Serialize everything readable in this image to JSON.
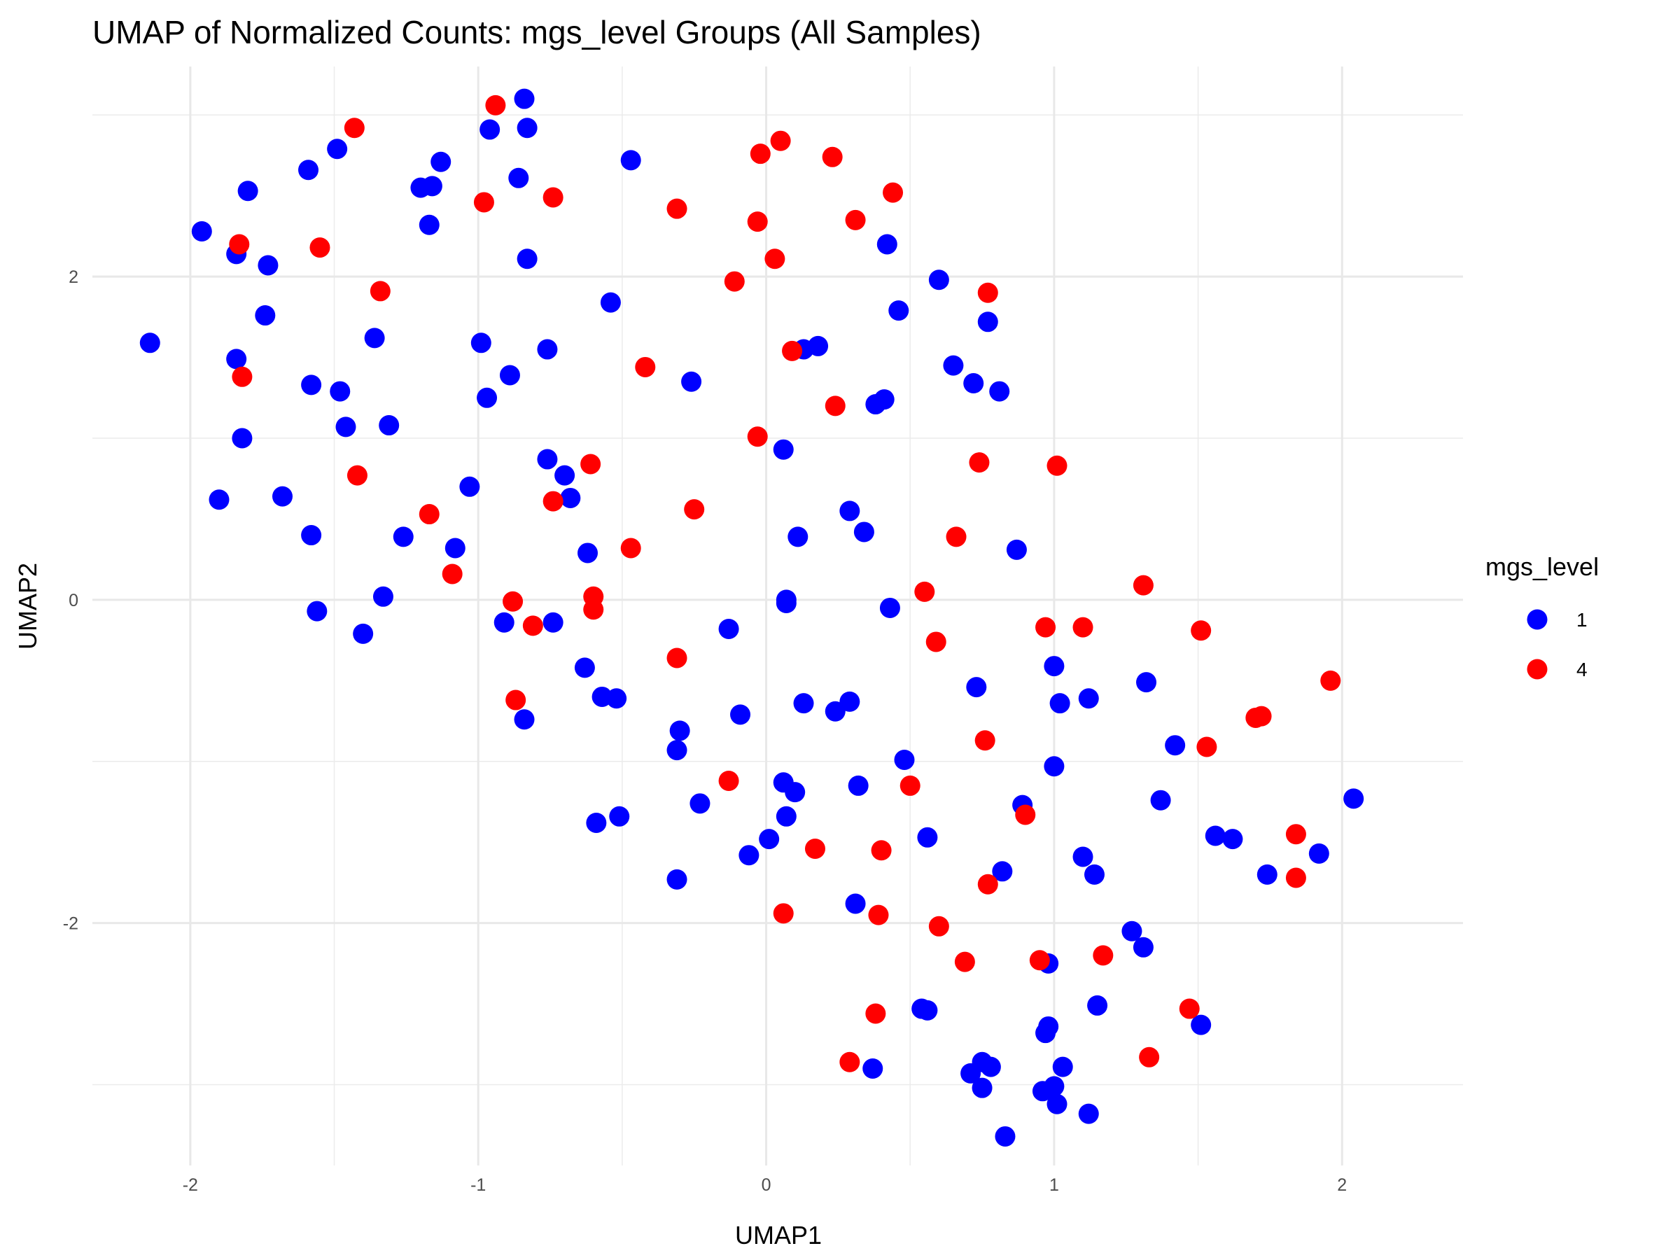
{
  "chart_data": {
    "type": "scatter",
    "title": "UMAP of Normalized Counts: mgs_level Groups (All Samples)",
    "xlabel": "UMAP1",
    "ylabel": "UMAP2",
    "xlim": [
      -2.34,
      2.42
    ],
    "ylim": [
      -3.5,
      3.3
    ],
    "xticks": [
      -2,
      -1,
      0,
      1,
      2
    ],
    "yticks": [
      -2,
      0,
      2
    ],
    "xtick_labels": [
      "-2",
      "-1",
      "0",
      "1",
      "2"
    ],
    "ytick_labels": [
      "-2",
      "0",
      "2"
    ],
    "grid": true,
    "legend_title": "mgs_level",
    "legend_position": "right",
    "series": [
      {
        "name": "1",
        "color": "#0000ff",
        "points": [
          [
            -2.14,
            1.59
          ],
          [
            -1.96,
            2.28
          ],
          [
            -1.9,
            0.62
          ],
          [
            -1.84,
            1.49
          ],
          [
            -1.84,
            2.14
          ],
          [
            -1.82,
            1.0
          ],
          [
            -1.8,
            2.53
          ],
          [
            -1.74,
            1.76
          ],
          [
            -1.73,
            2.07
          ],
          [
            -1.68,
            0.64
          ],
          [
            -1.59,
            2.66
          ],
          [
            -1.58,
            1.33
          ],
          [
            -1.58,
            0.4
          ],
          [
            -1.56,
            -0.07
          ],
          [
            -1.49,
            2.79
          ],
          [
            -1.48,
            1.29
          ],
          [
            -1.46,
            1.07
          ],
          [
            -1.4,
            -0.21
          ],
          [
            -1.36,
            1.62
          ],
          [
            -1.33,
            0.02
          ],
          [
            -1.31,
            1.08
          ],
          [
            -1.26,
            0.39
          ],
          [
            -1.2,
            2.55
          ],
          [
            -1.16,
            2.56
          ],
          [
            -1.17,
            2.32
          ],
          [
            -1.13,
            2.71
          ],
          [
            -1.08,
            0.32
          ],
          [
            -1.03,
            0.7
          ],
          [
            -0.99,
            1.59
          ],
          [
            -0.97,
            1.25
          ],
          [
            -0.96,
            2.91
          ],
          [
            -0.91,
            -0.14
          ],
          [
            -0.89,
            1.39
          ],
          [
            -0.86,
            2.61
          ],
          [
            -0.84,
            3.1
          ],
          [
            -0.83,
            2.92
          ],
          [
            -0.83,
            2.11
          ],
          [
            -0.84,
            -0.74
          ],
          [
            -0.74,
            -0.14
          ],
          [
            -0.76,
            1.55
          ],
          [
            -0.76,
            0.87
          ],
          [
            -0.7,
            0.77
          ],
          [
            -0.68,
            0.63
          ],
          [
            -0.62,
            0.29
          ],
          [
            -0.63,
            -0.42
          ],
          [
            -0.57,
            -0.6
          ],
          [
            -0.52,
            -0.61
          ],
          [
            -0.59,
            -1.38
          ],
          [
            -0.51,
            -1.34
          ],
          [
            -0.54,
            1.84
          ],
          [
            -0.47,
            2.72
          ],
          [
            -0.26,
            1.35
          ],
          [
            -0.3,
            -0.81
          ],
          [
            -0.31,
            -0.93
          ],
          [
            -0.31,
            -1.73
          ],
          [
            -0.23,
            -1.26
          ],
          [
            -0.13,
            -0.18
          ],
          [
            -0.09,
            -0.71
          ],
          [
            -0.06,
            -1.58
          ],
          [
            0.01,
            -1.48
          ],
          [
            0.06,
            -1.13
          ],
          [
            0.06,
            0.93
          ],
          [
            0.07,
            0.0
          ],
          [
            0.07,
            -0.02
          ],
          [
            0.1,
            -1.19
          ],
          [
            0.07,
            -1.34
          ],
          [
            0.11,
            0.39
          ],
          [
            0.13,
            1.55
          ],
          [
            0.13,
            -0.64
          ],
          [
            0.18,
            1.57
          ],
          [
            0.24,
            -0.69
          ],
          [
            0.29,
            -0.63
          ],
          [
            0.29,
            0.55
          ],
          [
            0.32,
            -1.15
          ],
          [
            0.31,
            -1.88
          ],
          [
            0.34,
            0.42
          ],
          [
            0.37,
            -2.9
          ],
          [
            0.38,
            1.21
          ],
          [
            0.41,
            1.24
          ],
          [
            0.42,
            2.2
          ],
          [
            0.43,
            -0.05
          ],
          [
            0.46,
            1.79
          ],
          [
            0.48,
            -0.99
          ],
          [
            0.54,
            -2.53
          ],
          [
            0.56,
            -2.54
          ],
          [
            0.56,
            -1.47
          ],
          [
            0.6,
            1.98
          ],
          [
            0.65,
            1.45
          ],
          [
            0.71,
            -2.93
          ],
          [
            0.72,
            1.34
          ],
          [
            0.73,
            -0.54
          ],
          [
            0.75,
            -2.86
          ],
          [
            0.75,
            -3.02
          ],
          [
            0.77,
            1.72
          ],
          [
            0.78,
            -2.89
          ],
          [
            0.81,
            1.29
          ],
          [
            0.82,
            -1.68
          ],
          [
            0.83,
            -3.32
          ],
          [
            0.87,
            0.31
          ],
          [
            0.89,
            -1.27
          ],
          [
            0.96,
            -3.04
          ],
          [
            0.97,
            -2.68
          ],
          [
            0.98,
            -2.64
          ],
          [
            0.98,
            -2.25
          ],
          [
            1.0,
            -3.01
          ],
          [
            1.0,
            -1.03
          ],
          [
            1.0,
            -0.41
          ],
          [
            1.01,
            -3.12
          ],
          [
            1.02,
            -0.64
          ],
          [
            1.03,
            -2.89
          ],
          [
            1.1,
            -1.59
          ],
          [
            1.12,
            -0.61
          ],
          [
            1.12,
            -3.18
          ],
          [
            1.14,
            -1.7
          ],
          [
            1.15,
            -2.51
          ],
          [
            1.27,
            -2.05
          ],
          [
            1.31,
            -2.15
          ],
          [
            1.32,
            -0.51
          ],
          [
            1.37,
            -1.24
          ],
          [
            1.42,
            -0.9
          ],
          [
            1.56,
            -1.46
          ],
          [
            1.62,
            -1.48
          ],
          [
            1.74,
            -1.7
          ],
          [
            1.92,
            -1.57
          ],
          [
            2.04,
            -1.23
          ],
          [
            1.51,
            -2.63
          ]
        ]
      },
      {
        "name": "4",
        "color": "#ff0000",
        "points": [
          [
            -1.83,
            2.2
          ],
          [
            -1.82,
            1.38
          ],
          [
            -1.55,
            2.18
          ],
          [
            -1.43,
            2.92
          ],
          [
            -1.42,
            0.77
          ],
          [
            -1.34,
            1.91
          ],
          [
            -1.17,
            0.53
          ],
          [
            -1.09,
            0.16
          ],
          [
            -0.98,
            2.46
          ],
          [
            -0.94,
            3.06
          ],
          [
            -0.88,
            -0.01
          ],
          [
            -0.87,
            -0.62
          ],
          [
            -0.81,
            -0.16
          ],
          [
            -0.74,
            2.49
          ],
          [
            -0.74,
            0.61
          ],
          [
            -0.61,
            0.84
          ],
          [
            -0.6,
            0.02
          ],
          [
            -0.6,
            -0.06
          ],
          [
            -0.47,
            0.32
          ],
          [
            -0.42,
            1.44
          ],
          [
            -0.31,
            2.42
          ],
          [
            -0.31,
            -0.36
          ],
          [
            -0.25,
            0.56
          ],
          [
            -0.13,
            -1.12
          ],
          [
            -0.11,
            1.97
          ],
          [
            -0.03,
            1.01
          ],
          [
            -0.03,
            2.34
          ],
          [
            -0.02,
            2.76
          ],
          [
            0.03,
            2.11
          ],
          [
            0.05,
            2.84
          ],
          [
            0.06,
            -1.94
          ],
          [
            0.09,
            1.54
          ],
          [
            0.17,
            -1.54
          ],
          [
            0.23,
            2.74
          ],
          [
            0.24,
            1.2
          ],
          [
            0.29,
            -2.86
          ],
          [
            0.31,
            2.35
          ],
          [
            0.38,
            -2.56
          ],
          [
            0.39,
            -1.95
          ],
          [
            0.4,
            -1.55
          ],
          [
            0.44,
            2.52
          ],
          [
            0.5,
            -1.15
          ],
          [
            0.55,
            0.05
          ],
          [
            0.59,
            -0.26
          ],
          [
            0.6,
            -2.02
          ],
          [
            0.66,
            0.39
          ],
          [
            0.69,
            -2.24
          ],
          [
            0.74,
            0.85
          ],
          [
            0.76,
            -0.87
          ],
          [
            0.77,
            -1.76
          ],
          [
            0.77,
            1.9
          ],
          [
            0.9,
            -1.33
          ],
          [
            0.95,
            -2.23
          ],
          [
            0.97,
            -0.17
          ],
          [
            1.01,
            0.83
          ],
          [
            1.1,
            -0.17
          ],
          [
            1.17,
            -2.2
          ],
          [
            1.31,
            0.09
          ],
          [
            1.33,
            -2.83
          ],
          [
            1.47,
            -2.53
          ],
          [
            1.51,
            -0.19
          ],
          [
            1.53,
            -0.91
          ],
          [
            1.7,
            -0.73
          ],
          [
            1.72,
            -0.72
          ],
          [
            1.84,
            -1.45
          ],
          [
            1.84,
            -1.72
          ],
          [
            1.96,
            -0.5
          ]
        ]
      }
    ]
  }
}
